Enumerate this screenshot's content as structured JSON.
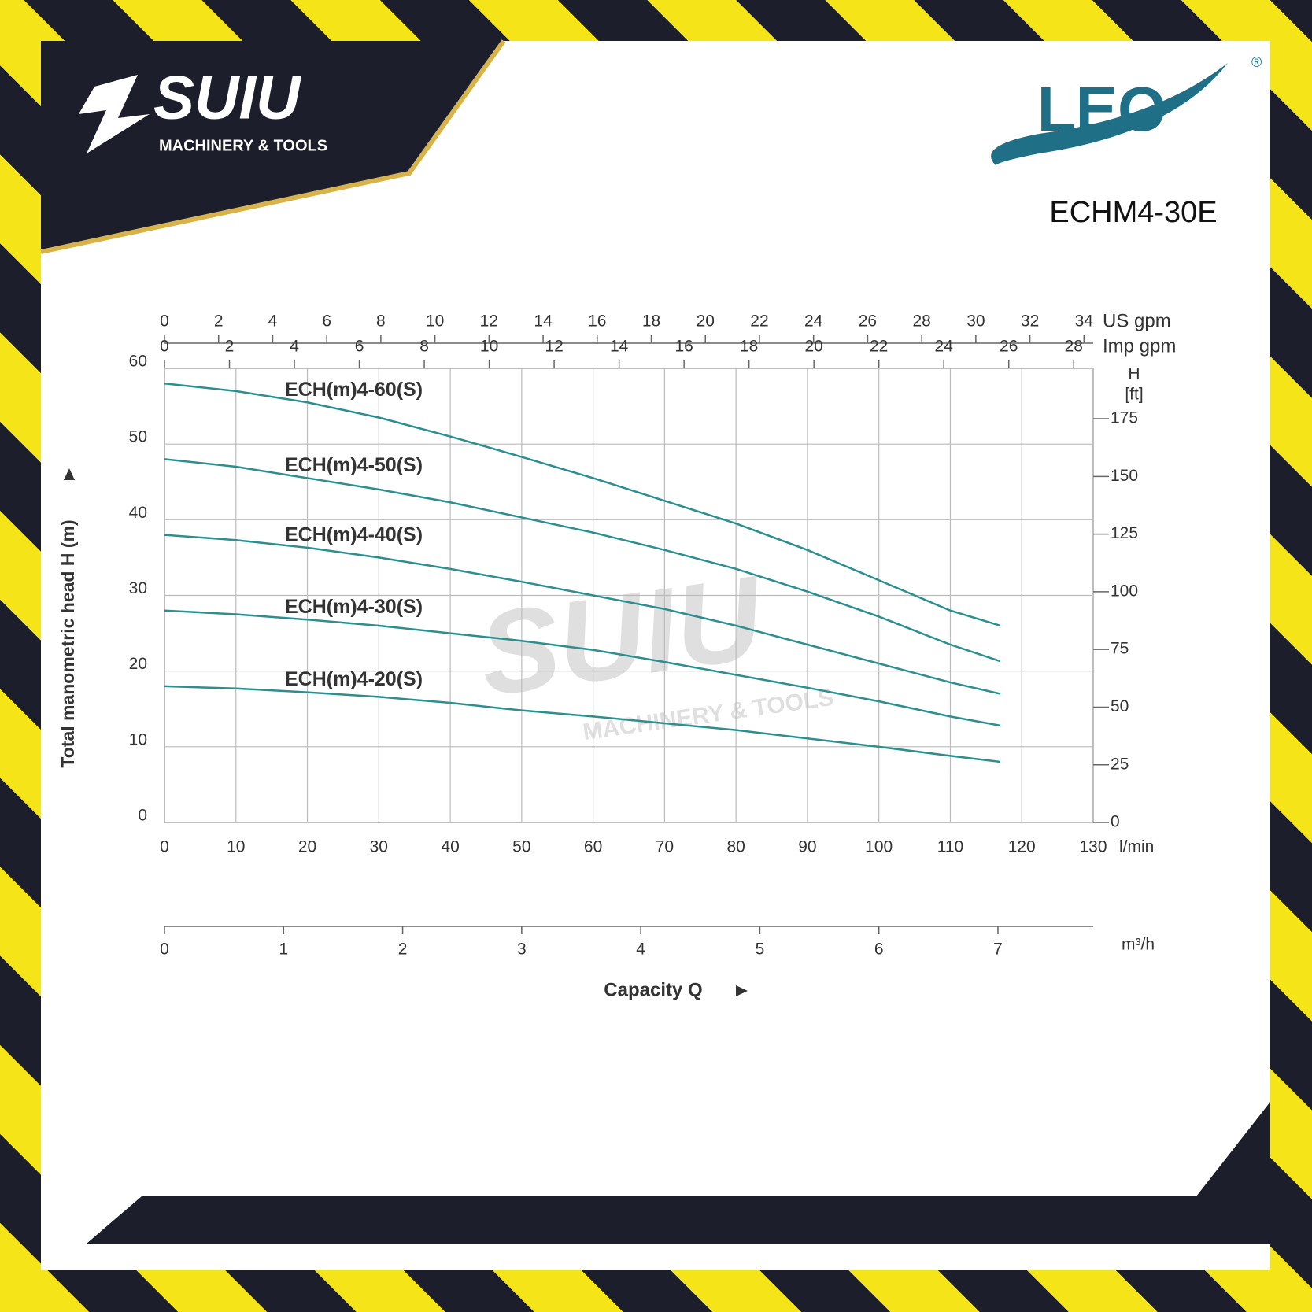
{
  "brand": {
    "name": "SUIU",
    "tagline": "MACHINERY & TOOLS"
  },
  "logo": {
    "name": "LEO",
    "mark": "®"
  },
  "model": "ECHM4-30E",
  "chart_data": {
    "type": "line",
    "xlabel": "Capacity Q",
    "ylabel": "Total manometric head H (m)",
    "x_unit": "l/min",
    "x": [
      0,
      10,
      20,
      30,
      40,
      50,
      60,
      70,
      80,
      90,
      100,
      110,
      117
    ],
    "series": [
      {
        "name": "ECH(m)4-60(S)",
        "color": "#2b8f8f",
        "values": [
          58,
          57,
          55.5,
          53.5,
          51,
          48.3,
          45.5,
          42.5,
          39.5,
          36,
          32,
          28,
          26
        ]
      },
      {
        "name": "ECH(m)4-50(S)",
        "color": "#2b8f8f",
        "values": [
          48,
          47,
          45.5,
          44,
          42.3,
          40.3,
          38.3,
          36,
          33.5,
          30.5,
          27.2,
          23.5,
          21.3
        ]
      },
      {
        "name": "ECH(m)4-40(S)",
        "color": "#2b8f8f",
        "values": [
          38,
          37.3,
          36.3,
          35,
          33.5,
          31.8,
          30,
          28.2,
          26,
          23.5,
          21,
          18.5,
          17
        ]
      },
      {
        "name": "ECH(m)4-30(S)",
        "color": "#2b8f8f",
        "values": [
          28,
          27.5,
          26.8,
          26,
          25,
          24,
          22.8,
          21.2,
          19.5,
          17.8,
          16,
          14,
          12.8
        ]
      },
      {
        "name": "ECH(m)4-20(S)",
        "color": "#2b8f8f",
        "values": [
          18,
          17.7,
          17.2,
          16.6,
          15.8,
          14.8,
          14,
          13.1,
          12.2,
          11.1,
          10,
          8.8,
          8
        ]
      }
    ],
    "xlim": [
      0,
      130
    ],
    "xticks": [
      0,
      10,
      20,
      30,
      40,
      50,
      60,
      70,
      80,
      90,
      100,
      110,
      120,
      130
    ],
    "ylim": [
      0,
      60
    ],
    "yticks": [
      0,
      10,
      20,
      30,
      40,
      50,
      60
    ],
    "grid": true,
    "y2label": "H",
    "y2unit": "[ft]",
    "y2lim": [
      0,
      196.85
    ],
    "y2ticks": [
      0,
      25,
      50,
      75,
      100,
      125,
      150,
      175
    ],
    "top_axes": [
      {
        "label": "US gpm",
        "lim": [
          0,
          34.34
        ],
        "ticks": [
          0,
          2,
          4,
          6,
          8,
          10,
          12,
          14,
          16,
          18,
          20,
          22,
          24,
          26,
          28,
          30,
          32,
          34
        ]
      },
      {
        "label": "Imp gpm",
        "lim": [
          0,
          28.6
        ],
        "ticks": [
          0,
          2,
          4,
          6,
          8,
          10,
          12,
          14,
          16,
          18,
          20,
          22,
          24,
          26,
          28
        ]
      }
    ],
    "bottom_axis2": {
      "label": "m³/h",
      "lim": [
        0,
        7.8
      ],
      "ticks": [
        0,
        1,
        2,
        3,
        4,
        5,
        6,
        7
      ]
    }
  }
}
